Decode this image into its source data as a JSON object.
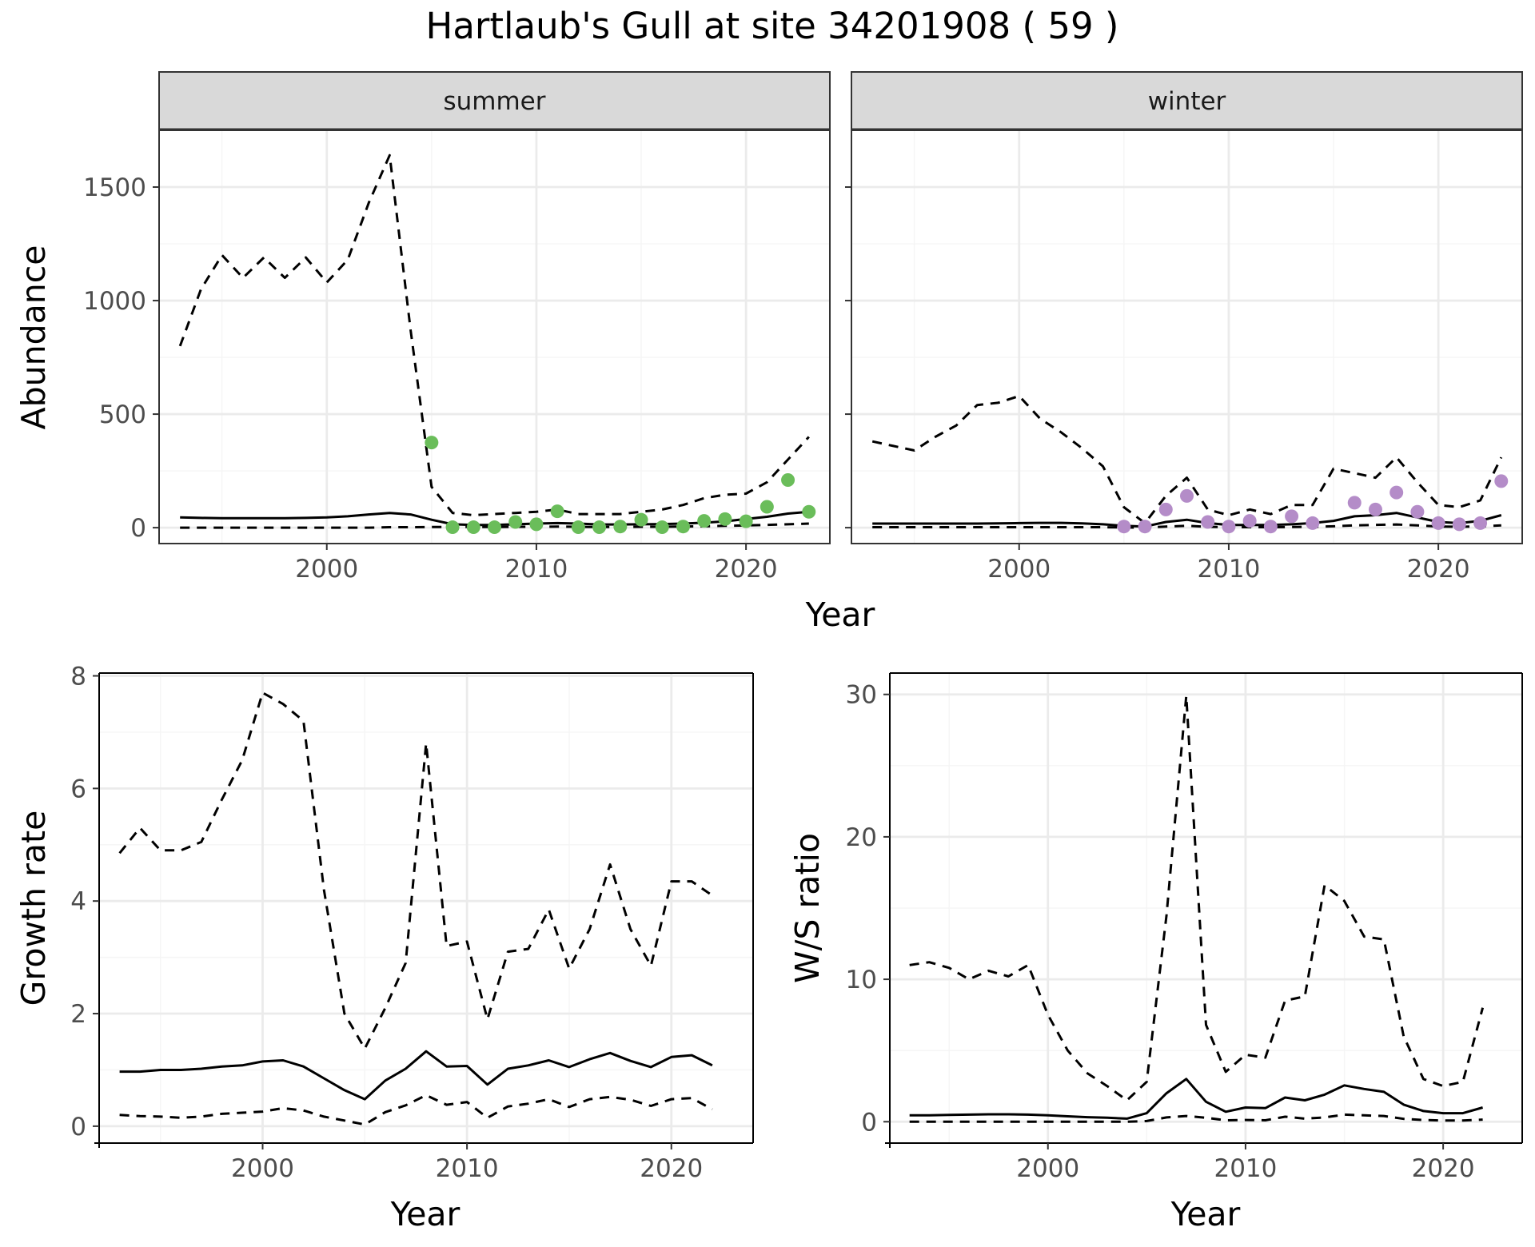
{
  "title": "Hartlaub's Gull at site 34201908 ( 59 )",
  "colors": {
    "summer_points": "#6abd5a",
    "winter_points": "#b48cc8",
    "lines": "#000000",
    "grid_major": "#ebebeb",
    "grid_minor": "#f5f5f5",
    "strip_bg": "#d9d9d9"
  },
  "chart_data": [
    {
      "id": "abundance",
      "type": "line",
      "xlabel": "Year",
      "ylabel": "Abundance",
      "xlim": [
        1992,
        2024
      ],
      "ylim": [
        -70,
        1750
      ],
      "xticks": [
        "2000",
        "2010",
        "2020"
      ],
      "yticks": [
        "0",
        "500",
        "1000",
        "1500"
      ],
      "grid": true,
      "facets": [
        {
          "label": "summer",
          "point_color": "#6abd5a",
          "x": [
            1993,
            1994,
            1995,
            1996,
            1997,
            1998,
            1999,
            2000,
            2001,
            2002,
            2003,
            2004,
            2005,
            2006,
            2007,
            2008,
            2009,
            2010,
            2011,
            2012,
            2013,
            2014,
            2015,
            2016,
            2017,
            2018,
            2019,
            2020,
            2021,
            2022,
            2023
          ],
          "mean": [
            45,
            43,
            42,
            42,
            42,
            42,
            43,
            45,
            50,
            58,
            65,
            58,
            35,
            15,
            12,
            12,
            15,
            18,
            20,
            18,
            14,
            14,
            15,
            16,
            18,
            22,
            28,
            38,
            48,
            62,
            70
          ],
          "lower": [
            0,
            0,
            0,
            0,
            0,
            0,
            0,
            0,
            0,
            0,
            2,
            2,
            3,
            3,
            3,
            3,
            4,
            4,
            5,
            4,
            3,
            3,
            4,
            4,
            5,
            6,
            8,
            10,
            12,
            15,
            18
          ],
          "upper": [
            800,
            1050,
            1200,
            1100,
            1190,
            1100,
            1190,
            1080,
            1180,
            1430,
            1640,
            870,
            180,
            65,
            55,
            60,
            65,
            70,
            80,
            60,
            60,
            60,
            70,
            80,
            100,
            130,
            145,
            150,
            200,
            300,
            400
          ],
          "obs_x": [
            2005,
            2006,
            2007,
            2008,
            2009,
            2010,
            2011,
            2012,
            2013,
            2014,
            2015,
            2016,
            2017,
            2018,
            2019,
            2020,
            2021,
            2022,
            2023
          ],
          "obs_y": [
            375,
            2,
            2,
            2,
            25,
            15,
            72,
            2,
            2,
            5,
            35,
            2,
            5,
            30,
            38,
            28,
            92,
            210,
            70
          ]
        },
        {
          "label": "winter",
          "point_color": "#b48cc8",
          "x": [
            1993,
            1994,
            1995,
            1996,
            1997,
            1998,
            1999,
            2000,
            2001,
            2002,
            2003,
            2004,
            2005,
            2006,
            2007,
            2008,
            2009,
            2010,
            2011,
            2012,
            2013,
            2014,
            2015,
            2016,
            2017,
            2018,
            2019,
            2020,
            2021,
            2022,
            2023
          ],
          "mean": [
            18,
            18,
            18,
            18,
            18,
            18,
            19,
            20,
            21,
            21,
            19,
            15,
            8,
            5,
            25,
            35,
            20,
            12,
            12,
            12,
            15,
            20,
            30,
            50,
            55,
            65,
            45,
            25,
            20,
            30,
            55
          ],
          "lower": [
            2,
            2,
            2,
            2,
            2,
            2,
            2,
            2,
            2,
            2,
            2,
            2,
            1,
            0,
            5,
            8,
            4,
            2,
            2,
            2,
            3,
            4,
            6,
            10,
            12,
            14,
            10,
            5,
            4,
            6,
            10
          ],
          "upper": [
            380,
            360,
            340,
            400,
            450,
            540,
            550,
            580,
            480,
            420,
            350,
            270,
            90,
            20,
            140,
            220,
            80,
            55,
            80,
            60,
            100,
            100,
            260,
            240,
            220,
            310,
            200,
            100,
            90,
            120,
            310
          ],
          "obs_x": [
            2005,
            2006,
            2007,
            2008,
            2009,
            2010,
            2011,
            2012,
            2013,
            2014,
            2016,
            2017,
            2018,
            2019,
            2020,
            2021,
            2022,
            2023
          ],
          "obs_y": [
            5,
            5,
            80,
            140,
            25,
            5,
            30,
            5,
            50,
            20,
            110,
            80,
            155,
            70,
            20,
            15,
            20,
            205
          ]
        }
      ]
    },
    {
      "id": "growth",
      "type": "line",
      "xlabel": "Year",
      "ylabel": "Growth rate",
      "xlim": [
        1992,
        2024
      ],
      "ylim": [
        -0.3,
        8.05
      ],
      "xticks": [
        "2000",
        "2010",
        "2020"
      ],
      "yticks": [
        "0",
        "2",
        "4",
        "6",
        "8"
      ],
      "grid": true,
      "x": [
        1993,
        1994,
        1995,
        1996,
        1997,
        1998,
        1999,
        2000,
        2001,
        2002,
        2003,
        2004,
        2005,
        2006,
        2007,
        2008,
        2009,
        2010,
        2011,
        2012,
        2013,
        2014,
        2015,
        2016,
        2017,
        2018,
        2019,
        2020,
        2021,
        2022
      ],
      "mean": [
        0.97,
        0.97,
        1.0,
        1.0,
        1.02,
        1.06,
        1.08,
        1.15,
        1.17,
        1.06,
        0.85,
        0.64,
        0.48,
        0.81,
        1.02,
        1.33,
        1.06,
        1.07,
        0.74,
        1.02,
        1.08,
        1.17,
        1.05,
        1.19,
        1.3,
        1.16,
        1.05,
        1.23,
        1.26,
        1.08
      ],
      "lower": [
        0.2,
        0.18,
        0.17,
        0.15,
        0.17,
        0.22,
        0.24,
        0.26,
        0.32,
        0.28,
        0.17,
        0.1,
        0.03,
        0.25,
        0.37,
        0.55,
        0.38,
        0.43,
        0.15,
        0.35,
        0.4,
        0.48,
        0.34,
        0.48,
        0.52,
        0.47,
        0.36,
        0.48,
        0.5,
        0.3
      ],
      "upper": [
        4.85,
        5.3,
        4.9,
        4.9,
        5.05,
        5.8,
        6.5,
        7.7,
        7.5,
        7.2,
        4.2,
        2.0,
        1.38,
        2.1,
        2.9,
        6.8,
        3.2,
        3.28,
        1.9,
        3.1,
        3.15,
        3.85,
        2.8,
        3.5,
        4.65,
        3.5,
        2.85,
        4.35,
        4.35,
        4.1
      ]
    },
    {
      "id": "ws_ratio",
      "type": "line",
      "xlabel": "Year",
      "ylabel": "W/S ratio",
      "xlim": [
        1992,
        2024
      ],
      "ylim": [
        -1.5,
        31.5
      ],
      "xticks": [
        "2000",
        "2010",
        "2020"
      ],
      "yticks": [
        "0",
        "10",
        "20",
        "30"
      ],
      "grid": true,
      "x": [
        1993,
        1994,
        1995,
        1996,
        1997,
        1998,
        1999,
        2000,
        2001,
        2002,
        2003,
        2004,
        2005,
        2006,
        2007,
        2008,
        2009,
        2010,
        2011,
        2012,
        2013,
        2014,
        2015,
        2016,
        2017,
        2018,
        2019,
        2020,
        2021,
        2022
      ],
      "mean": [
        0.45,
        0.45,
        0.48,
        0.5,
        0.52,
        0.52,
        0.5,
        0.45,
        0.38,
        0.32,
        0.28,
        0.22,
        0.6,
        2.0,
        3.0,
        1.4,
        0.7,
        1.0,
        0.95,
        1.7,
        1.5,
        1.9,
        2.55,
        2.3,
        2.1,
        1.2,
        0.75,
        0.6,
        0.6,
        1.0
      ],
      "lower": [
        0.0,
        0.0,
        0.0,
        0.0,
        0.0,
        0.0,
        0.0,
        0.0,
        0.0,
        0.0,
        0.0,
        0.0,
        0.05,
        0.3,
        0.4,
        0.28,
        0.1,
        0.12,
        0.1,
        0.35,
        0.22,
        0.3,
        0.5,
        0.45,
        0.4,
        0.2,
        0.12,
        0.08,
        0.08,
        0.15
      ],
      "upper": [
        11.0,
        11.2,
        10.8,
        10.0,
        10.6,
        10.2,
        11.0,
        7.5,
        5.0,
        3.4,
        2.5,
        1.5,
        2.8,
        14.5,
        29.9,
        6.8,
        3.5,
        4.7,
        4.5,
        8.5,
        8.8,
        16.6,
        15.5,
        13.0,
        12.8,
        6.0,
        3.0,
        2.5,
        2.8,
        8.0
      ]
    }
  ]
}
